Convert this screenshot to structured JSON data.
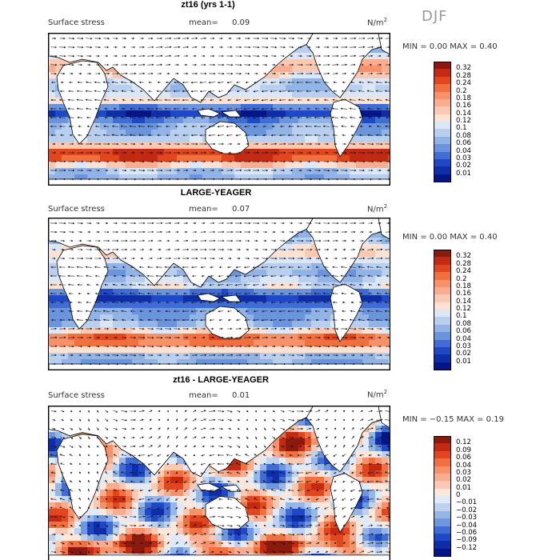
{
  "season": "DJF",
  "panels": [
    {
      "title": "zt16 (yrs 1-1)",
      "variable": "Surface stress",
      "mean_label": "mean=",
      "mean_value": "0.09",
      "units_base": "N/m",
      "units_exp": "2",
      "minmax": "MIN =    0.00  MAX =    0.40",
      "scale": "sequential",
      "colorbar": {
        "levels": [
          "0.32",
          "0.28",
          "0.24",
          "0.2",
          "0.18",
          "0.16",
          "0.14",
          "0.12",
          "0.1",
          "0.08",
          "0.06",
          "0.04",
          "0.03",
          "0.02",
          "0.01"
        ],
        "colors": [
          "#8b1a0e",
          "#c22a14",
          "#e2461f",
          "#f0703f",
          "#f7916a",
          "#f9ad8e",
          "#fbc9b1",
          "#fbe2d3",
          "#dbe6f6",
          "#b9cfef",
          "#91b3e6",
          "#6a94dc",
          "#3f6dd3",
          "#1e48c8",
          "#0f2da6",
          "#061585"
        ]
      }
    },
    {
      "title": "LARGE-YEAGER",
      "variable": "Surface stress",
      "mean_label": "mean=",
      "mean_value": "0.07",
      "units_base": "N/m",
      "units_exp": "2",
      "minmax": "MIN =    0.00  MAX =    0.40",
      "scale": "sequential",
      "colorbar": {
        "levels": [
          "0.32",
          "0.28",
          "0.24",
          "0.2",
          "0.18",
          "0.16",
          "0.14",
          "0.12",
          "0.1",
          "0.08",
          "0.06",
          "0.04",
          "0.03",
          "0.02",
          "0.01"
        ],
        "colors": [
          "#8b1a0e",
          "#c22a14",
          "#e2461f",
          "#f0703f",
          "#f7916a",
          "#f9ad8e",
          "#fbc9b1",
          "#fbe2d3",
          "#dbe6f6",
          "#b9cfef",
          "#91b3e6",
          "#6a94dc",
          "#3f6dd3",
          "#1e48c8",
          "#0f2da6",
          "#061585"
        ]
      }
    },
    {
      "title": "zt16 - LARGE-YEAGER",
      "variable": "Surface stress",
      "mean_label": "mean=",
      "mean_value": "0.01",
      "units_base": "N/m",
      "units_exp": "2",
      "minmax": "MIN =  −0.15  MAX =   0.19",
      "scale": "diverging",
      "colorbar": {
        "levels": [
          "0.12",
          "0.09",
          "0.06",
          "0.04",
          "0.03",
          "0.02",
          "0.01",
          "0",
          "−0.01",
          "−0.02",
          "−0.03",
          "−0.04",
          "−0.06",
          "−0.09",
          "−0.12"
        ],
        "colors": [
          "#8b1a0e",
          "#c22a14",
          "#e2461f",
          "#f0703f",
          "#f7916a",
          "#f9ad8e",
          "#fbc9b1",
          "#fde6da",
          "#dfe9f7",
          "#bcd2f0",
          "#96b6e7",
          "#6f97dd",
          "#3f6dd3",
          "#1e48c8",
          "#0f2da6",
          "#061585"
        ]
      }
    }
  ]
}
